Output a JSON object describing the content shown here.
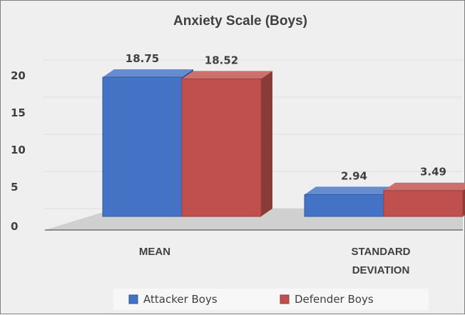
{
  "chart_data": {
    "type": "bar",
    "title": "Anxiety Scale  (Boys)",
    "categories": [
      "MEAN",
      "STANDARD DEVIATION"
    ],
    "category_lines": [
      [
        "MEAN"
      ],
      [
        "STANDARD",
        "DEVIATION"
      ]
    ],
    "series": [
      {
        "name": "Attacker Boys",
        "values": [
          18.75,
          2.94
        ],
        "color": "#4472c4"
      },
      {
        "name": "Defender Boys",
        "values": [
          18.52,
          3.49
        ],
        "color": "#c0504d"
      }
    ],
    "data_labels": [
      [
        "18.75",
        "18.52"
      ],
      [
        "2.94",
        "3.49"
      ]
    ],
    "yticks": [
      "0",
      "5",
      "10",
      "15",
      "20"
    ],
    "ylim": [
      0,
      20
    ],
    "legend": "bottom",
    "grid": true,
    "style": "3d-column"
  }
}
